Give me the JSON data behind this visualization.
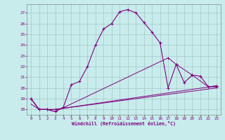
{
  "xlabel": "Windchill (Refroidissement éolien,°C)",
  "bg_color": "#c8ecec",
  "line_color": "#800080",
  "grid_color": "#9bbfbf",
  "xlim": [
    -0.5,
    23.5
  ],
  "ylim": [
    17.5,
    27.8
  ],
  "yticks": [
    18,
    19,
    20,
    21,
    22,
    23,
    24,
    25,
    26,
    27
  ],
  "xticks": [
    0,
    1,
    2,
    3,
    4,
    5,
    6,
    7,
    8,
    9,
    10,
    11,
    12,
    13,
    14,
    15,
    16,
    17,
    18,
    19,
    20,
    21,
    22,
    23
  ],
  "line1_x": [
    0,
    1,
    2,
    3,
    4,
    5,
    6,
    7,
    8,
    9,
    10,
    11,
    12,
    13,
    14,
    15,
    16,
    17,
    18,
    19,
    20,
    21,
    22,
    23
  ],
  "line1_y": [
    19,
    18,
    18,
    17.8,
    18.2,
    20.3,
    20.6,
    22,
    24,
    25.5,
    26,
    27.1,
    27.3,
    27,
    26.1,
    25.2,
    24.2,
    20.0,
    22.2,
    20.5,
    21.2,
    21.1,
    20.1,
    20.2
  ],
  "line2_x": [
    0,
    1,
    2,
    3,
    23
  ],
  "line2_y": [
    19,
    18,
    18,
    18,
    20.2
  ],
  "line3_x": [
    0,
    1,
    2,
    3,
    17,
    18,
    20,
    22,
    23
  ],
  "line3_y": [
    19,
    18,
    18,
    17.8,
    22.8,
    22.2,
    21.2,
    20.1,
    20.1
  ],
  "line4_x": [
    0,
    1,
    2,
    3,
    23
  ],
  "line4_y": [
    18.5,
    18.0,
    18.0,
    18.0,
    20.0
  ]
}
